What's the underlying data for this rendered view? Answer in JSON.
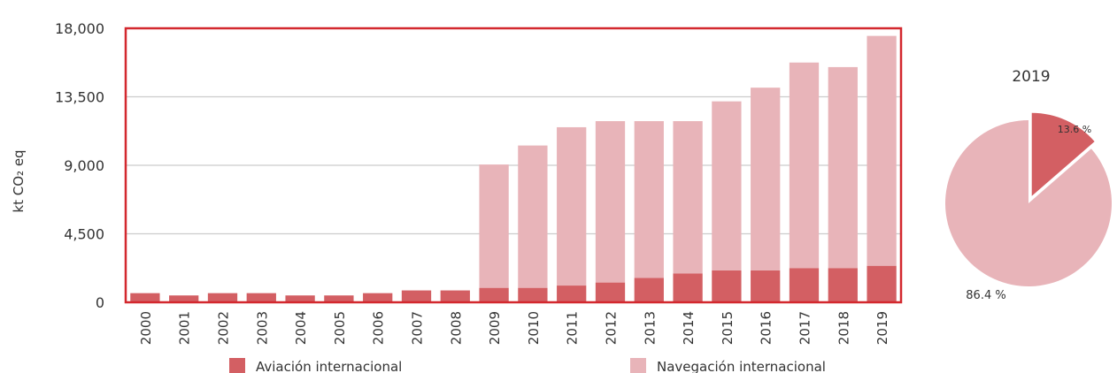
{
  "chart_data": [
    {
      "type": "bar",
      "stacked": true,
      "ylabel": "kt CO₂ eq",
      "ylim": [
        0,
        18000
      ],
      "yticks": [
        "0",
        "4,500",
        "9,000",
        "13,500",
        "18,000"
      ],
      "ytick_values": [
        0,
        4500,
        9000,
        13500,
        18000
      ],
      "grid": true,
      "legend_position": "bottom",
      "categories": [
        "2000",
        "2001",
        "2002",
        "2003",
        "2004",
        "2005",
        "2006",
        "2007",
        "2008",
        "2009",
        "2010",
        "2011",
        "2012",
        "2013",
        "2014",
        "2015",
        "2016",
        "2017",
        "2018",
        "2019"
      ],
      "series": [
        {
          "name": "Aviación internacional",
          "color": "#d35f63",
          "values": [
            600,
            450,
            600,
            600,
            450,
            450,
            600,
            780,
            780,
            950,
            950,
            1100,
            1300,
            1600,
            1900,
            2100,
            2100,
            2250,
            2250,
            2400
          ]
        },
        {
          "name": "Navegación internacional",
          "color": "#e8b4b9",
          "values": [
            0,
            0,
            0,
            0,
            0,
            0,
            0,
            0,
            0,
            8100,
            9350,
            10400,
            10600,
            10300,
            10000,
            11100,
            12000,
            13500,
            13200,
            15100
          ]
        }
      ]
    },
    {
      "type": "pie",
      "title": "2019",
      "slices": [
        {
          "label": "13.6 %",
          "value": 13.6,
          "color": "#d35f63"
        },
        {
          "label": "86.4 %",
          "value": 86.4,
          "color": "#e8b4b9"
        }
      ]
    }
  ],
  "colors": {
    "frame": "#d3282e",
    "grid": "#cccccc",
    "axis_text": "#333333"
  }
}
